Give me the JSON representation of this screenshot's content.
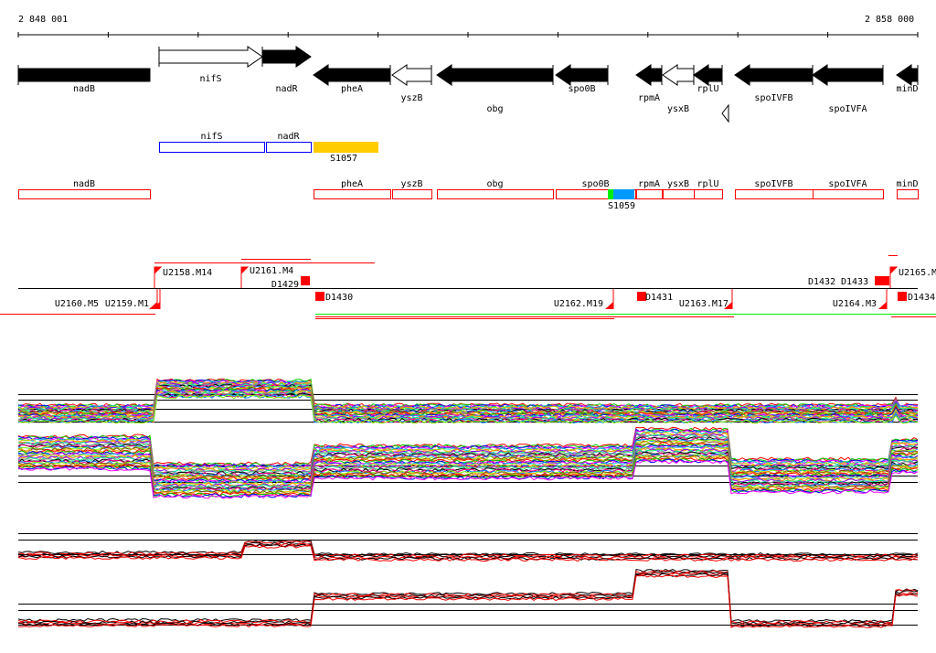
{
  "axis": {
    "start_label": "2 848 001",
    "end_label": "2 858 000"
  },
  "genes": [
    {
      "name": "nadB",
      "fill": "black"
    },
    {
      "name": "nifS",
      "fill": "white"
    },
    {
      "name": "nadR",
      "fill": "black"
    },
    {
      "name": "pheA",
      "fill": "black"
    },
    {
      "name": "yszB",
      "fill": "white"
    },
    {
      "name": "obg",
      "fill": "black"
    },
    {
      "name": "spo0B",
      "fill": "black"
    },
    {
      "name": "rpmA",
      "fill": "black"
    },
    {
      "name": "ysxB",
      "fill": "white"
    },
    {
      "name": "rplU",
      "fill": "black"
    },
    {
      "name": "spoIVFB",
      "fill": "black"
    },
    {
      "name": "spoIVFA",
      "fill": "black"
    },
    {
      "name": "minD",
      "fill": "black"
    }
  ],
  "operons": [
    {
      "name": "nifS",
      "color": "#0000ff"
    },
    {
      "name": "nadR",
      "color": "#0000ff"
    }
  ],
  "sigma_sites": [
    {
      "name": "S1057",
      "color": "#ffcc00"
    },
    {
      "name": "S1059",
      "color": "#0099ff"
    }
  ],
  "annot_boxes": [
    "nadB",
    "pheA",
    "yszB",
    "obg",
    "spo0B",
    "rpmA",
    "ysxB",
    "rplU",
    "spoIVFB",
    "spoIVFA",
    "minD"
  ],
  "transcripts_up": [
    "U2158.M14",
    "U2161.M4",
    "U2165.M"
  ],
  "transcripts_down": [
    "U2159.M1",
    "U2160.M5",
    "U2162.M19",
    "U2163.M17",
    "U2164.M3"
  ],
  "terminators": [
    "D1429",
    "D1430",
    "D1431",
    "D1432",
    "D1433",
    "D1434"
  ],
  "colors": {
    "accent": "#ff0000",
    "operon": "#0000ff",
    "green": "#00ee00"
  }
}
